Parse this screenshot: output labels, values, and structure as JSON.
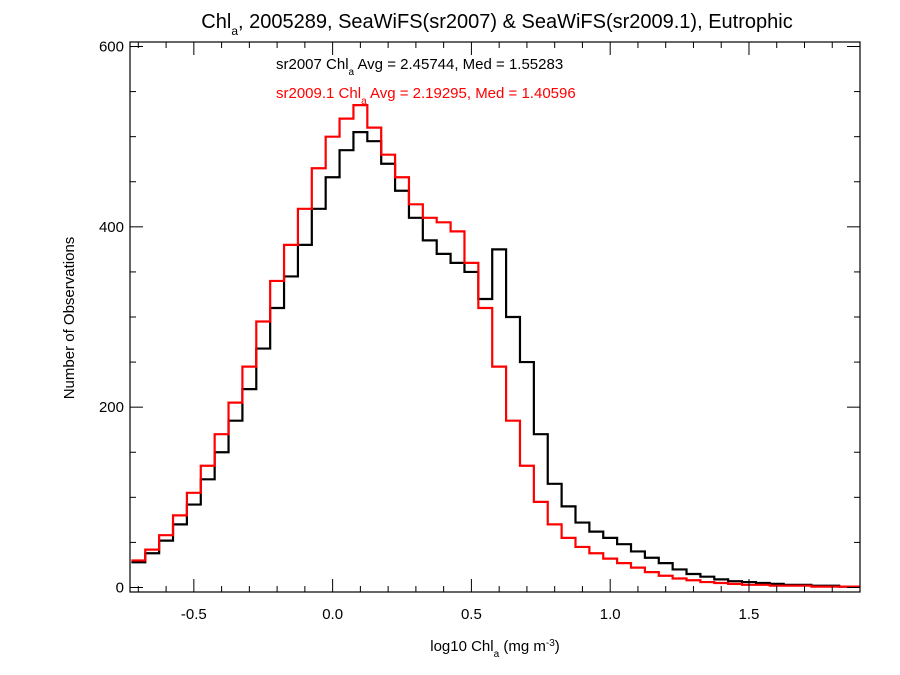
{
  "chart_data": {
    "type": "histogram-step",
    "title": {
      "prefix": "Chl",
      "sub": "a",
      "rest": ", 2005289, SeaWiFS(sr2007) & SeaWiFS(sr2009.1), Eutrophic"
    },
    "xlabel": {
      "prefix": "log10 Chl",
      "sub": "a",
      "mid": " (mg m",
      "sup": "-3",
      "suffix": ")"
    },
    "ylabel": "Number of Observations",
    "xlim": [
      -0.73,
      1.9
    ],
    "ylim": [
      -5,
      605
    ],
    "xticks": [
      {
        "value": -0.5,
        "label": "-0.5"
      },
      {
        "value": 0.0,
        "label": "0.0"
      },
      {
        "value": 0.5,
        "label": "0.5"
      },
      {
        "value": 1.0,
        "label": "1.0"
      },
      {
        "value": 1.5,
        "label": "1.5"
      }
    ],
    "yticks": [
      {
        "value": 0,
        "label": "0"
      },
      {
        "value": 200,
        "label": "200"
      },
      {
        "value": 400,
        "label": "400"
      },
      {
        "value": 600,
        "label": "600"
      }
    ],
    "annotations": [
      {
        "color": "#000000",
        "prefix": "sr2007 Chl",
        "sub": "a",
        "rest": " Avg = 2.45744, Med = 1.55283"
      },
      {
        "color": "#ff0000",
        "prefix": "sr2009.1 Chl",
        "sub": "a",
        "rest": " Avg = 2.19295, Med = 1.40596"
      }
    ],
    "series": [
      {
        "name": "sr2007",
        "color": "#000000",
        "x": [
          -0.7,
          -0.65,
          -0.6,
          -0.55,
          -0.5,
          -0.45,
          -0.4,
          -0.35,
          -0.3,
          -0.25,
          -0.2,
          -0.15,
          -0.1,
          -0.05,
          0.0,
          0.05,
          0.1,
          0.15,
          0.2,
          0.25,
          0.3,
          0.35,
          0.4,
          0.45,
          0.5,
          0.55,
          0.6,
          0.65,
          0.7,
          0.75,
          0.8,
          0.85,
          0.9,
          0.95,
          1.0,
          1.05,
          1.1,
          1.15,
          1.2,
          1.25,
          1.3,
          1.35,
          1.4,
          1.45,
          1.5,
          1.55,
          1.6,
          1.65,
          1.7,
          1.75,
          1.8,
          1.85,
          1.9
        ],
        "values": [
          28,
          38,
          52,
          70,
          92,
          120,
          150,
          185,
          220,
          265,
          310,
          345,
          380,
          420,
          455,
          485,
          505,
          495,
          470,
          440,
          410,
          385,
          370,
          360,
          350,
          320,
          375,
          300,
          250,
          170,
          115,
          90,
          72,
          62,
          55,
          48,
          40,
          33,
          27,
          20,
          15,
          12,
          9,
          7,
          6,
          5,
          4,
          3,
          3,
          2,
          2,
          1,
          1
        ]
      },
      {
        "name": "sr2009.1",
        "color": "#ff0000",
        "x": [
          -0.7,
          -0.65,
          -0.6,
          -0.55,
          -0.5,
          -0.45,
          -0.4,
          -0.35,
          -0.3,
          -0.25,
          -0.2,
          -0.15,
          -0.1,
          -0.05,
          0.0,
          0.05,
          0.1,
          0.15,
          0.2,
          0.25,
          0.3,
          0.35,
          0.4,
          0.45,
          0.5,
          0.55,
          0.6,
          0.65,
          0.7,
          0.75,
          0.8,
          0.85,
          0.9,
          0.95,
          1.0,
          1.05,
          1.1,
          1.15,
          1.2,
          1.25,
          1.3,
          1.35,
          1.4,
          1.45,
          1.5,
          1.55,
          1.6,
          1.65,
          1.7,
          1.75,
          1.8,
          1.85,
          1.9
        ],
        "values": [
          30,
          42,
          58,
          80,
          105,
          135,
          170,
          205,
          245,
          295,
          340,
          380,
          420,
          465,
          500,
          520,
          535,
          510,
          480,
          455,
          425,
          410,
          405,
          395,
          360,
          310,
          245,
          185,
          135,
          95,
          70,
          55,
          45,
          38,
          32,
          27,
          22,
          17,
          13,
          10,
          8,
          6,
          5,
          4,
          3,
          3,
          2,
          2,
          2,
          1,
          1,
          1,
          1
        ]
      }
    ]
  }
}
